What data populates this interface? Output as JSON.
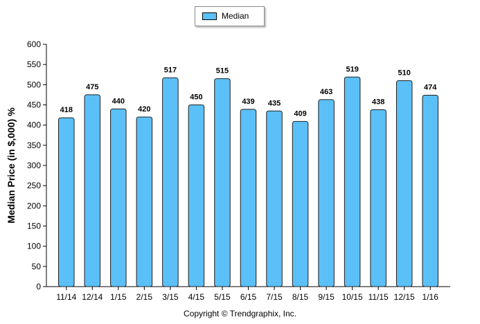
{
  "legend": {
    "label": "Median"
  },
  "copyright": "Copyright © Trendgraphix, Inc.",
  "colors": {
    "bar": "#5bc0f8",
    "bar_stroke": "#1f1f1f",
    "axis": "#000000"
  },
  "chart_data": {
    "type": "bar",
    "categories": [
      "11/14",
      "12/14",
      "1/15",
      "2/15",
      "3/15",
      "4/15",
      "5/15",
      "6/15",
      "7/15",
      "8/15",
      "9/15",
      "10/15",
      "11/15",
      "12/15",
      "1/16"
    ],
    "series": [
      {
        "name": "Median",
        "values": [
          418,
          475,
          440,
          420,
          517,
          450,
          515,
          439,
          435,
          409,
          463,
          519,
          438,
          510,
          474
        ]
      }
    ],
    "data_labels": [
      "418",
      "475",
      "440",
      "420",
      "517",
      "450",
      "515",
      "439",
      "435",
      "409",
      "463",
      "519",
      "438",
      "510",
      "474"
    ],
    "ylabel": "Median Price (in $,000) %",
    "xlabel": "",
    "ylim": [
      0,
      600
    ],
    "yticks": [
      0,
      50,
      100,
      150,
      200,
      250,
      300,
      350,
      400,
      450,
      500,
      550,
      600
    ],
    "grid": false,
    "legend_position": "top-center"
  }
}
